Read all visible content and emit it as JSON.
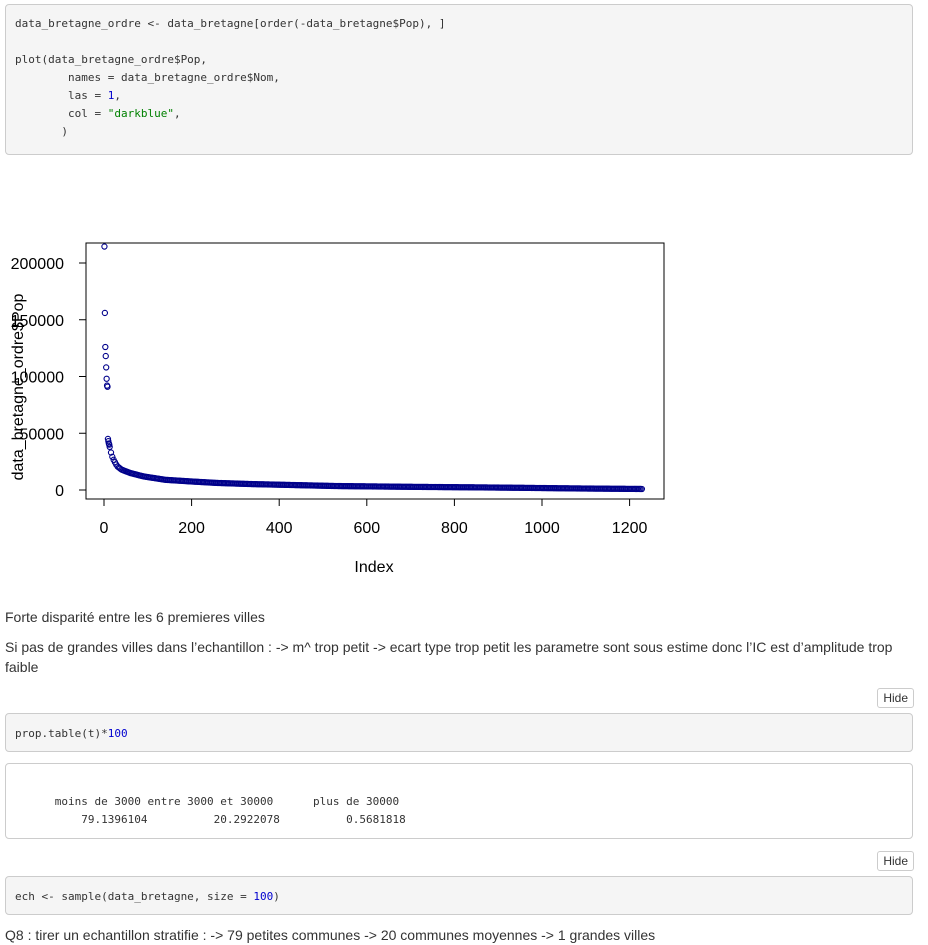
{
  "code1": {
    "line1_a": "data_bretagne_ordre <- data_bretagne[order(-data_bretagne$Pop), ]",
    "line3_a": "plot(data_bretagne_ordre$Pop,",
    "line4_a": "        names = data_bretagne_ordre$Nom,",
    "line5_a": "        las = ",
    "line5_num": "1",
    "line5_b": ",",
    "line6_a": "        col = ",
    "line6_str": "\"darkblue\"",
    "line6_b": ",",
    "line7_a": "       )"
  },
  "chart_data": {
    "type": "scatter",
    "title": "",
    "xlabel": "Index",
    "ylabel": "data_bretagne_ordre$Pop",
    "xlim": [
      0,
      1230
    ],
    "ylim": [
      0,
      215000
    ],
    "x_ticks": [
      "0",
      "200",
      "400",
      "600",
      "800",
      "1000",
      "1200"
    ],
    "y_ticks": [
      "0",
      "50000",
      "100000",
      "150000",
      "200000"
    ],
    "marker_color": "#00008b",
    "marker": "open-circle",
    "n_points": 1230,
    "series": [
      {
        "points": [
          [
            1,
            214500
          ],
          [
            2,
            156000
          ],
          [
            3,
            126000
          ],
          [
            4,
            118000
          ],
          [
            5,
            108000
          ],
          [
            6,
            98000
          ],
          [
            7,
            92000
          ],
          [
            8,
            91000
          ],
          [
            9,
            45000
          ],
          [
            10,
            43000
          ],
          [
            11,
            41000
          ],
          [
            12,
            40000
          ]
        ]
      }
    ],
    "tail_profile": [
      [
        13,
        38000
      ],
      [
        16,
        33000
      ],
      [
        20,
        28000
      ],
      [
        30,
        21000
      ],
      [
        40,
        18000
      ],
      [
        60,
        15000
      ],
      [
        90,
        12000
      ],
      [
        140,
        9000
      ],
      [
        200,
        7500
      ],
      [
        260,
        6200
      ],
      [
        340,
        5200
      ],
      [
        420,
        4500
      ],
      [
        530,
        3500
      ],
      [
        700,
        2800
      ],
      [
        860,
        2300
      ],
      [
        960,
        1900
      ],
      [
        1100,
        1300
      ],
      [
        1230,
        900
      ]
    ]
  },
  "text": {
    "p1": "Forte disparité entre les 6 premieres villes",
    "p2": "Si pas de grandes villes dans l’echantillon : -> m^ trop petit -> ecart type trop petit les parametre sont sous estime donc l’IC est d’amplitude trop faible",
    "p3": "Q8 : tirer un echantillon stratifie : -> 79 petites communes -> 20 communes moyennes -> 1 grandes villes"
  },
  "buttons": {
    "hide1": "Hide",
    "hide2": "Hide"
  },
  "code2": {
    "a": "prop.table(t)*",
    "num": "100"
  },
  "output1": {
    "header": "      moins de 3000 entre 3000 et 30000      plus de 30000",
    "values": "          79.1396104          20.2922078          0.5681818"
  },
  "code3": {
    "a": "ech <- sample(data_bretagne, size = ",
    "num": "100",
    "b": ")"
  }
}
